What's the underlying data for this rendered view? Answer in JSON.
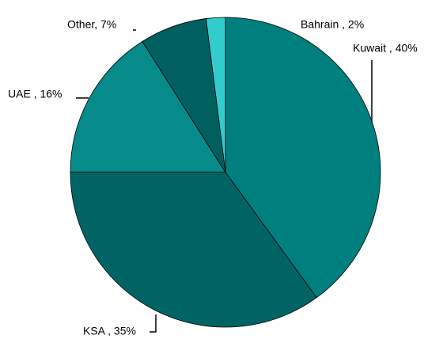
{
  "chart_data": {
    "type": "pie",
    "categories": [
      "Kuwait",
      "KSA",
      "UAE",
      "Other",
      "Bahrain"
    ],
    "values": [
      40,
      35,
      16,
      7,
      2
    ],
    "value_labels": [
      "Kuwait , 40%",
      "KSA , 35%",
      "UAE , 16%",
      "Other, 7%",
      "Bahrain , 2%"
    ],
    "colors": [
      "#007f7f",
      "#006464",
      "#078a8a",
      "#006060",
      "#33cccc"
    ]
  }
}
